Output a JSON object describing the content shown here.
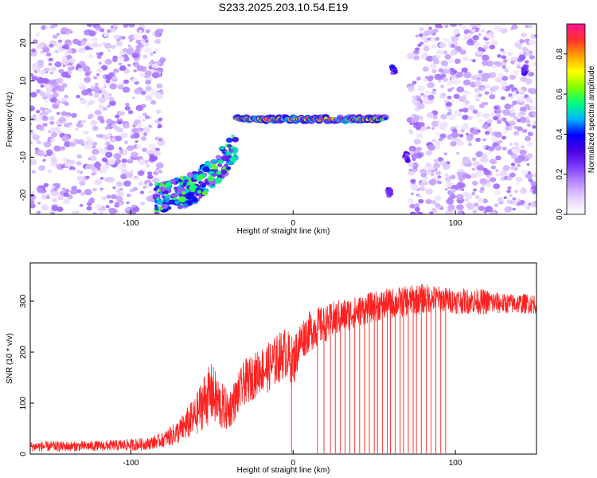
{
  "figure": {
    "title": "S233.2025.203.10.54.E19"
  },
  "chart_data": [
    {
      "type": "heatmap",
      "xlabel": "Height of straight line (km)",
      "ylabel": "Frequency (Hz)",
      "xlim": [
        -162,
        150
      ],
      "ylim": [
        -25,
        25
      ],
      "xticks": [
        -100,
        0,
        100
      ],
      "yticks": [
        -20,
        -10,
        0,
        10,
        20
      ],
      "xtick_labels": [
        "-100",
        "0",
        "100"
      ],
      "ytick_labels": [
        "-20",
        "-10",
        "0",
        "10",
        "20"
      ],
      "colorbar": {
        "label": "Normalized spectral amplitude",
        "range": [
          0.0,
          0.95
        ],
        "ticks": [
          0.0,
          0.2,
          0.4,
          0.6,
          0.8
        ],
        "tick_labels": [
          "0.0",
          "0.2",
          "0.4",
          "0.6",
          "0.8"
        ],
        "colormap": [
          "#ffffff",
          "#e6d4ff",
          "#b98cff",
          "#7d3cff",
          "#4b00e0",
          "#0000ff",
          "#00b4ff",
          "#00ff80",
          "#80ff00",
          "#ffff00",
          "#ffa000",
          "#ff3030",
          "#ff1493"
        ]
      },
      "features": [
        {
          "name": "main-band",
          "x": [
            -35,
            57
          ],
          "y": 0,
          "amplitude": 0.9
        },
        {
          "name": "low-cluster",
          "x": [
            -85,
            -35
          ],
          "y": [
            -24,
            -5
          ],
          "amplitude": 0.45
        },
        {
          "name": "spot-upper",
          "x": 62,
          "y": 13,
          "amplitude": 0.35
        },
        {
          "name": "spot-mid",
          "x": 70,
          "y": -10,
          "amplitude": 0.3
        },
        {
          "name": "spot-low",
          "x": 59,
          "y": -19,
          "amplitude": 0.3
        },
        {
          "name": "spot-right",
          "x": 143,
          "y": 13,
          "amplitude": 0.3
        }
      ],
      "noise_regions": [
        {
          "x": [
            -162,
            -80
          ],
          "amplitude": 0.12
        },
        {
          "x": [
            72,
            150
          ],
          "amplitude": 0.12
        }
      ],
      "grid": false,
      "legend": "none"
    },
    {
      "type": "line",
      "xlabel": "Height of straight line (km)",
      "ylabel": "SNR (10 * v/v)",
      "xlim": [
        -162,
        150
      ],
      "ylim": [
        0,
        375
      ],
      "xticks": [
        -100,
        0,
        100
      ],
      "yticks": [
        0,
        100,
        200,
        300
      ],
      "xtick_labels": [
        "-100",
        "0",
        "100"
      ],
      "ytick_labels": [
        "0",
        "100",
        "200",
        "300"
      ],
      "series": [
        {
          "color": "#ff2020",
          "x": [
            -162,
            -140,
            -120,
            -100,
            -90,
            -80,
            -70,
            -60,
            -55,
            -50,
            -45,
            -40,
            -35,
            -30,
            -25,
            -20,
            -15,
            -10,
            -5,
            0,
            5,
            10,
            15,
            20,
            25,
            30,
            40,
            50,
            60,
            70,
            80,
            90,
            100,
            110,
            120,
            130,
            140,
            150
          ],
          "y": [
            15,
            15,
            16,
            18,
            20,
            28,
            45,
            75,
            105,
            120,
            95,
            85,
            110,
            140,
            150,
            165,
            170,
            185,
            200,
            180,
            225,
            240,
            250,
            255,
            265,
            270,
            280,
            290,
            295,
            300,
            305,
            305,
            300,
            300,
            298,
            295,
            295,
            295
          ],
          "noise": [
            10,
            10,
            10,
            12,
            12,
            15,
            25,
            40,
            55,
            60,
            50,
            40,
            40,
            45,
            45,
            45,
            50,
            50,
            50,
            50,
            40,
            40,
            40,
            35,
            35,
            35,
            30,
            30,
            30,
            30,
            30,
            25,
            25,
            25,
            25,
            20,
            20,
            20
          ]
        }
      ],
      "dropouts_x": [
        -1,
        15,
        19,
        23,
        26,
        29,
        32,
        35,
        38,
        41,
        44,
        47,
        50,
        52,
        55,
        58,
        60,
        63,
        66,
        68,
        71,
        74,
        76,
        79,
        82,
        85,
        88,
        91,
        94
      ],
      "grid": false,
      "legend": "none"
    }
  ]
}
